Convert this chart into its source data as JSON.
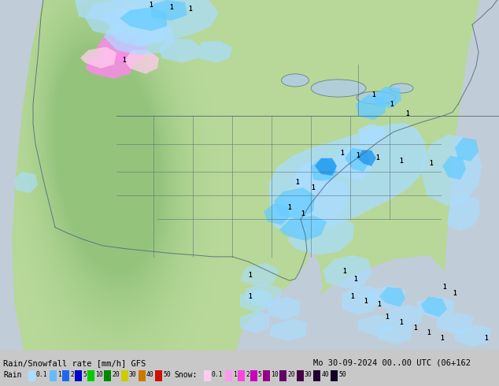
{
  "title_left": "Rain/Snowfall rate [mm/h] GFS",
  "title_right": "Mo 30-09-2024 00..00 UTC (06+162",
  "fig_bg": "#c8c8c8",
  "info_bg": "#d8d8d8",
  "map_bg": "#b8d898",
  "terrain_dark": "#88aa78",
  "ocean_color": "#c8d8e8",
  "rain_swatch_colors": [
    "#aaddff",
    "#66bbff",
    "#2266ee",
    "#0000cc",
    "#00cc00",
    "#008800",
    "#cccc00",
    "#cc7700",
    "#cc1100"
  ],
  "rain_text_vals": [
    "0.1",
    "1",
    "2",
    "5",
    "10",
    "20",
    "30",
    "40",
    "50"
  ],
  "snow_swatch_colors": [
    "#ffccee",
    "#ff99ee",
    "#ff44dd",
    "#cc00bb",
    "#990088",
    "#660066",
    "#440044",
    "#220033",
    "#110022"
  ],
  "snow_text_vals": [
    "0.1",
    "1",
    "2",
    "5",
    "10",
    "20",
    "30",
    "40",
    "50"
  ],
  "rain_precip_light": "#aaddff",
  "rain_precip_med": "#66ccff",
  "rain_precip_dark": "#2299ee",
  "rain_precip_heavy": "#0055cc",
  "snow_precip_light": "#ffccee",
  "snow_precip_med": "#ff88ee",
  "snow_precip_dark": "#ff44dd",
  "border_color": "#556677",
  "label_color": "#000000"
}
